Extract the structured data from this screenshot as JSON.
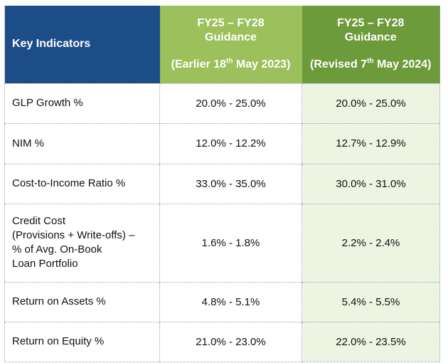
{
  "header": {
    "key_indicators": "Key Indicators",
    "old": {
      "line1": "FY25 – FY28",
      "line2": "Guidance",
      "note_prefix": "(Earlier 18",
      "note_sup": "th",
      "note_suffix": " May 2023)"
    },
    "new": {
      "line1": "FY25 – FY28",
      "line2": "Guidance",
      "note_prefix": "(Revised 7",
      "note_sup": "th",
      "note_suffix": " May 2024)"
    }
  },
  "rows": [
    {
      "label": [
        "GLP Growth %"
      ],
      "earlier": "20.0% - 25.0%",
      "revised": "20.0% - 25.0%"
    },
    {
      "label": [
        "NIM %"
      ],
      "earlier": "12.0% - 12.2%",
      "revised": "12.7% - 12.9%"
    },
    {
      "label": [
        "Cost-to-Income Ratio %"
      ],
      "earlier": "33.0% - 35.0%",
      "revised": "30.0% - 31.0%"
    },
    {
      "label": [
        "Credit Cost",
        "(Provisions + Write-offs) –",
        "% of Avg. On-Book",
        "Loan Portfolio"
      ],
      "earlier": "1.6% - 1.8%",
      "revised": "2.2% - 2.4%"
    },
    {
      "label": [
        "Return on Assets %"
      ],
      "earlier": "4.8% - 5.1%",
      "revised": "5.4% - 5.5%"
    },
    {
      "label": [
        "Return on Equity %"
      ],
      "earlier": "21.0% - 23.0%",
      "revised": "22.0% - 23.5%"
    }
  ],
  "colors": {
    "header_blue": "#1d4d86",
    "header_light_green": "#9cc05b",
    "header_dark_green": "#6d9a3a",
    "revised_cell_bg": "#edf4e1"
  }
}
